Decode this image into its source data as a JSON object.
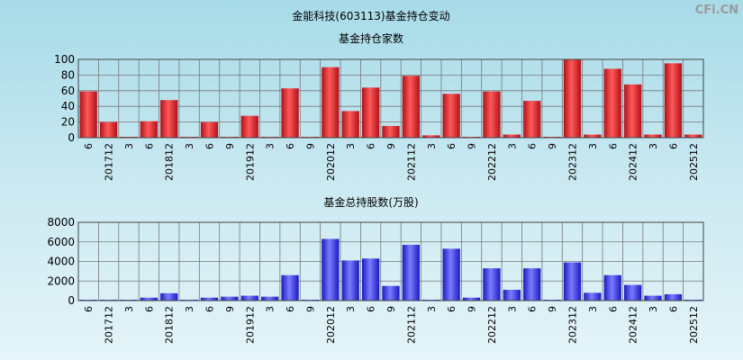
{
  "watermark": "CFi.CN",
  "main_title": "金能科技(603113)基金持仓变动",
  "colors": {
    "red_dark": "#b01018",
    "red_light": "#ff5a5a",
    "blue_dark": "#1a1ac0",
    "blue_light": "#7c7cff"
  },
  "chart_data": [
    {
      "type": "bar",
      "title": "基金持仓家数",
      "categories": [
        "6",
        "201712",
        "3",
        "6",
        "201812",
        "3",
        "6",
        "9",
        "201912",
        "3",
        "6",
        "9",
        "202012",
        "3",
        "6",
        "9",
        "202112",
        "3",
        "6",
        "9",
        "202212",
        "3",
        "6",
        "9",
        "202312",
        "3",
        "6",
        "202412",
        "3",
        "6",
        "202512"
      ],
      "values": [
        59,
        20,
        1,
        21,
        48,
        1,
        20,
        1,
        28,
        1,
        63,
        1,
        90,
        34,
        64,
        15,
        79,
        3,
        56,
        1,
        59,
        4,
        47,
        1,
        100,
        4,
        88,
        68,
        4,
        95,
        4
      ],
      "ylim": [
        0,
        100
      ],
      "yticks": [
        0,
        20,
        40,
        60,
        80,
        100
      ],
      "grid": true,
      "legend": "none"
    },
    {
      "type": "bar",
      "title": "基金总持股数(万股)",
      "categories": [
        "6",
        "201712",
        "3",
        "6",
        "201812",
        "3",
        "6",
        "9",
        "201912",
        "3",
        "6",
        "9",
        "202012",
        "3",
        "6",
        "9",
        "202112",
        "3",
        "6",
        "9",
        "202212",
        "3",
        "6",
        "9",
        "202312",
        "3",
        "6",
        "202412",
        "3",
        "6",
        "202512"
      ],
      "values": [
        60,
        30,
        30,
        300,
        750,
        30,
        300,
        400,
        500,
        400,
        2600,
        40,
        6300,
        4100,
        4300,
        1500,
        5700,
        60,
        5300,
        300,
        3300,
        1100,
        3300,
        60,
        3900,
        800,
        2600,
        1600,
        500,
        650,
        40
      ],
      "ylim": [
        0,
        8000
      ],
      "yticks": [
        0,
        2000,
        4000,
        6000,
        8000
      ],
      "grid": true,
      "legend": "none"
    }
  ]
}
